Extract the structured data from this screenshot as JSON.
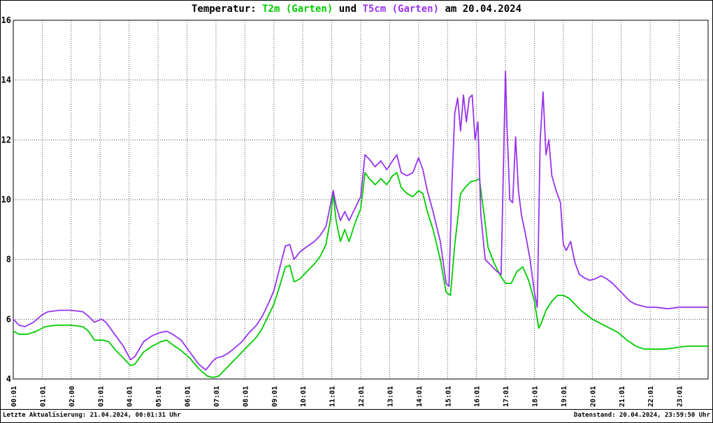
{
  "title": {
    "prefix": "Temperatur: ",
    "series1_label": "T2m (Garten)",
    "mid": " und ",
    "series2_label": "T5cm (Garten)",
    "suffix": " am 20.04.2024"
  },
  "footer": {
    "left": "Letzte Aktualisierung: 21.04.2024, 00:01:31 Uhr",
    "right": "Datenstand: 20.04.2024, 23:59:50 Uhr"
  },
  "colors": {
    "t2m": "#00cc00",
    "t5cm": "#9933ee",
    "grid": "#555555",
    "frame": "#000000",
    "background": "#ffffff"
  },
  "chart_data": {
    "type": "line",
    "title": "Temperatur: T2m (Garten) und T5cm (Garten) am 20.04.2024",
    "xlabel": "",
    "ylabel": "",
    "ylim": [
      4,
      16
    ],
    "xlim_hours": [
      0,
      24
    ],
    "grid": true,
    "legend_position": "in-title",
    "y_ticks": [
      4,
      6,
      8,
      10,
      12,
      14,
      16
    ],
    "x_tick_labels": [
      "00:01",
      "01:01",
      "02:00",
      "03:01",
      "04:01",
      "05:01",
      "06:01",
      "07:01",
      "08:01",
      "09:01",
      "10:01",
      "11:01",
      "12:01",
      "13:01",
      "14:01",
      "15:01",
      "16:01",
      "17:01",
      "18:01",
      "19:01",
      "20:01",
      "21:01",
      "22:01",
      "23:01"
    ],
    "series": [
      {
        "name": "T2m (Garten)",
        "color": "#00cc00",
        "points": [
          [
            0.0,
            5.6
          ],
          [
            0.2,
            5.5
          ],
          [
            0.5,
            5.5
          ],
          [
            0.8,
            5.6
          ],
          [
            1.1,
            5.75
          ],
          [
            1.5,
            5.8
          ],
          [
            2.0,
            5.8
          ],
          [
            2.4,
            5.75
          ],
          [
            2.6,
            5.6
          ],
          [
            2.8,
            5.3
          ],
          [
            3.1,
            5.3
          ],
          [
            3.3,
            5.25
          ],
          [
            3.5,
            5.0
          ],
          [
            3.8,
            4.7
          ],
          [
            4.05,
            4.45
          ],
          [
            4.2,
            4.5
          ],
          [
            4.5,
            4.9
          ],
          [
            4.8,
            5.1
          ],
          [
            5.1,
            5.25
          ],
          [
            5.3,
            5.3
          ],
          [
            5.5,
            5.15
          ],
          [
            5.8,
            4.95
          ],
          [
            6.1,
            4.7
          ],
          [
            6.4,
            4.35
          ],
          [
            6.7,
            4.1
          ],
          [
            6.9,
            4.05
          ],
          [
            7.1,
            4.1
          ],
          [
            7.3,
            4.3
          ],
          [
            7.6,
            4.6
          ],
          [
            7.9,
            4.9
          ],
          [
            8.1,
            5.1
          ],
          [
            8.4,
            5.4
          ],
          [
            8.6,
            5.7
          ],
          [
            8.8,
            6.1
          ],
          [
            9.0,
            6.5
          ],
          [
            9.2,
            7.1
          ],
          [
            9.4,
            7.75
          ],
          [
            9.55,
            7.8
          ],
          [
            9.7,
            7.25
          ],
          [
            9.9,
            7.35
          ],
          [
            10.1,
            7.55
          ],
          [
            10.4,
            7.85
          ],
          [
            10.6,
            8.1
          ],
          [
            10.8,
            8.5
          ],
          [
            10.95,
            9.3
          ],
          [
            11.05,
            10.2
          ],
          [
            11.15,
            9.3
          ],
          [
            11.3,
            8.6
          ],
          [
            11.45,
            9.0
          ],
          [
            11.6,
            8.6
          ],
          [
            11.8,
            9.2
          ],
          [
            12.0,
            9.7
          ],
          [
            12.15,
            10.9
          ],
          [
            12.3,
            10.7
          ],
          [
            12.5,
            10.5
          ],
          [
            12.7,
            10.7
          ],
          [
            12.9,
            10.5
          ],
          [
            13.1,
            10.8
          ],
          [
            13.25,
            10.9
          ],
          [
            13.4,
            10.4
          ],
          [
            13.6,
            10.2
          ],
          [
            13.8,
            10.1
          ],
          [
            14.0,
            10.3
          ],
          [
            14.15,
            10.2
          ],
          [
            14.3,
            9.6
          ],
          [
            14.5,
            9.0
          ],
          [
            14.75,
            8.0
          ],
          [
            14.95,
            6.9
          ],
          [
            15.1,
            6.8
          ],
          [
            15.25,
            8.5
          ],
          [
            15.45,
            10.2
          ],
          [
            15.6,
            10.4
          ],
          [
            15.8,
            10.6
          ],
          [
            16.0,
            10.65
          ],
          [
            16.1,
            10.7
          ],
          [
            16.25,
            9.6
          ],
          [
            16.4,
            8.4
          ],
          [
            16.6,
            7.9
          ],
          [
            16.8,
            7.5
          ],
          [
            17.0,
            7.2
          ],
          [
            17.2,
            7.2
          ],
          [
            17.4,
            7.6
          ],
          [
            17.6,
            7.75
          ],
          [
            17.8,
            7.3
          ],
          [
            18.0,
            6.6
          ],
          [
            18.15,
            5.7
          ],
          [
            18.25,
            5.9
          ],
          [
            18.4,
            6.3
          ],
          [
            18.6,
            6.6
          ],
          [
            18.8,
            6.8
          ],
          [
            19.0,
            6.8
          ],
          [
            19.2,
            6.7
          ],
          [
            19.4,
            6.5
          ],
          [
            19.6,
            6.3
          ],
          [
            19.8,
            6.15
          ],
          [
            20.0,
            6.0
          ],
          [
            20.3,
            5.85
          ],
          [
            20.6,
            5.7
          ],
          [
            20.9,
            5.55
          ],
          [
            21.2,
            5.3
          ],
          [
            21.5,
            5.1
          ],
          [
            21.8,
            5.0
          ],
          [
            22.1,
            5.0
          ],
          [
            22.5,
            5.0
          ],
          [
            22.9,
            5.05
          ],
          [
            23.3,
            5.1
          ],
          [
            23.7,
            5.1
          ],
          [
            23.98,
            5.1
          ]
        ]
      },
      {
        "name": "T5cm (Garten)",
        "color": "#9933ee",
        "points": [
          [
            0.0,
            6.0
          ],
          [
            0.2,
            5.8
          ],
          [
            0.4,
            5.75
          ],
          [
            0.7,
            5.9
          ],
          [
            1.0,
            6.15
          ],
          [
            1.2,
            6.25
          ],
          [
            1.6,
            6.3
          ],
          [
            2.0,
            6.3
          ],
          [
            2.4,
            6.25
          ],
          [
            2.6,
            6.1
          ],
          [
            2.8,
            5.9
          ],
          [
            3.05,
            6.0
          ],
          [
            3.2,
            5.9
          ],
          [
            3.5,
            5.5
          ],
          [
            3.8,
            5.1
          ],
          [
            4.05,
            4.65
          ],
          [
            4.2,
            4.75
          ],
          [
            4.5,
            5.25
          ],
          [
            4.8,
            5.45
          ],
          [
            5.05,
            5.55
          ],
          [
            5.3,
            5.6
          ],
          [
            5.5,
            5.5
          ],
          [
            5.8,
            5.3
          ],
          [
            6.1,
            4.9
          ],
          [
            6.4,
            4.5
          ],
          [
            6.65,
            4.3
          ],
          [
            6.85,
            4.55
          ],
          [
            7.0,
            4.7
          ],
          [
            7.2,
            4.75
          ],
          [
            7.4,
            4.85
          ],
          [
            7.6,
            5.0
          ],
          [
            7.9,
            5.25
          ],
          [
            8.1,
            5.5
          ],
          [
            8.4,
            5.8
          ],
          [
            8.6,
            6.1
          ],
          [
            8.8,
            6.5
          ],
          [
            9.0,
            6.95
          ],
          [
            9.2,
            7.7
          ],
          [
            9.4,
            8.45
          ],
          [
            9.55,
            8.5
          ],
          [
            9.7,
            8.0
          ],
          [
            9.9,
            8.25
          ],
          [
            10.1,
            8.4
          ],
          [
            10.4,
            8.6
          ],
          [
            10.6,
            8.8
          ],
          [
            10.8,
            9.1
          ],
          [
            10.95,
            9.8
          ],
          [
            11.05,
            10.3
          ],
          [
            11.15,
            9.8
          ],
          [
            11.3,
            9.3
          ],
          [
            11.45,
            9.6
          ],
          [
            11.6,
            9.3
          ],
          [
            11.8,
            9.7
          ],
          [
            12.0,
            10.1
          ],
          [
            12.15,
            11.5
          ],
          [
            12.3,
            11.35
          ],
          [
            12.5,
            11.1
          ],
          [
            12.7,
            11.3
          ],
          [
            12.9,
            11.0
          ],
          [
            13.1,
            11.3
          ],
          [
            13.25,
            11.5
          ],
          [
            13.4,
            10.9
          ],
          [
            13.6,
            10.8
          ],
          [
            13.8,
            10.9
          ],
          [
            14.0,
            11.4
          ],
          [
            14.15,
            11.0
          ],
          [
            14.3,
            10.3
          ],
          [
            14.5,
            9.6
          ],
          [
            14.75,
            8.6
          ],
          [
            14.95,
            7.2
          ],
          [
            15.05,
            7.1
          ],
          [
            15.15,
            10.5
          ],
          [
            15.25,
            12.9
          ],
          [
            15.35,
            13.4
          ],
          [
            15.45,
            12.3
          ],
          [
            15.55,
            13.5
          ],
          [
            15.65,
            12.6
          ],
          [
            15.75,
            13.4
          ],
          [
            15.85,
            13.5
          ],
          [
            15.95,
            12.0
          ],
          [
            16.05,
            12.6
          ],
          [
            16.15,
            9.5
          ],
          [
            16.3,
            8.0
          ],
          [
            16.5,
            7.8
          ],
          [
            16.7,
            7.6
          ],
          [
            16.85,
            7.5
          ],
          [
            16.95,
            12.0
          ],
          [
            17.0,
            14.3
          ],
          [
            17.05,
            12.5
          ],
          [
            17.15,
            10.0
          ],
          [
            17.25,
            9.9
          ],
          [
            17.35,
            12.1
          ],
          [
            17.45,
            10.3
          ],
          [
            17.55,
            9.5
          ],
          [
            17.7,
            8.8
          ],
          [
            17.85,
            8.0
          ],
          [
            18.0,
            6.9
          ],
          [
            18.1,
            6.4
          ],
          [
            18.2,
            12.0
          ],
          [
            18.3,
            13.6
          ],
          [
            18.4,
            11.5
          ],
          [
            18.5,
            12.0
          ],
          [
            18.6,
            10.8
          ],
          [
            18.75,
            10.3
          ],
          [
            18.9,
            9.9
          ],
          [
            19.0,
            8.5
          ],
          [
            19.1,
            8.3
          ],
          [
            19.25,
            8.6
          ],
          [
            19.4,
            7.9
          ],
          [
            19.55,
            7.5
          ],
          [
            19.7,
            7.4
          ],
          [
            19.9,
            7.3
          ],
          [
            20.1,
            7.35
          ],
          [
            20.3,
            7.45
          ],
          [
            20.5,
            7.35
          ],
          [
            20.7,
            7.2
          ],
          [
            20.9,
            7.0
          ],
          [
            21.1,
            6.8
          ],
          [
            21.3,
            6.6
          ],
          [
            21.5,
            6.5
          ],
          [
            21.7,
            6.45
          ],
          [
            21.9,
            6.4
          ],
          [
            22.2,
            6.4
          ],
          [
            22.6,
            6.35
          ],
          [
            23.0,
            6.4
          ],
          [
            23.4,
            6.4
          ],
          [
            23.98,
            6.4
          ]
        ]
      }
    ]
  }
}
